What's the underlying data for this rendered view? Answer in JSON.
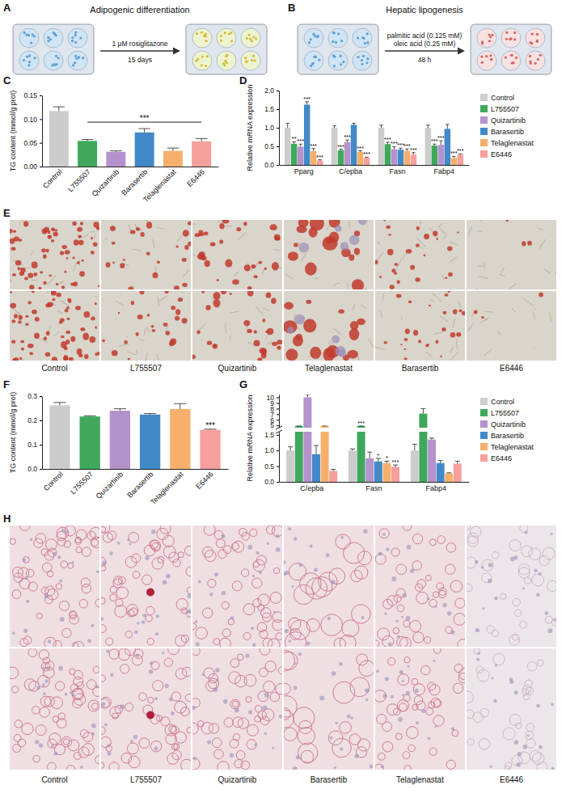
{
  "panel_labels": [
    "A",
    "B",
    "C",
    "D",
    "E",
    "F",
    "G",
    "H"
  ],
  "diagrams": [
    {
      "title": "Adipogenic differentiation",
      "above": [
        "1 μM rosiglitazone"
      ],
      "below": [
        "15 days"
      ]
    },
    {
      "title": "Hepatic lipogenesis",
      "above": [
        "palmitic acid (0.125 mM)",
        "oleic acid (0.25 mM)"
      ],
      "below": [
        "48 h"
      ]
    }
  ],
  "images": [
    {
      "captions": [
        "Control",
        "L755507",
        "Quizartinib",
        "Telaglenastat",
        "Barasertib",
        "E6446"
      ]
    },
    {
      "captions": [
        "Control",
        "L755507",
        "Quizartinib",
        "Barasertib",
        "Telaglenastat",
        "E6446"
      ]
    }
  ],
  "chart_data": [
    {
      "type": "bar",
      "ylabel": "TG content (mmol/g prot)",
      "categories": [
        "Control",
        "L755507",
        "Quizartinib",
        "Barasertib",
        "Telaglenastat",
        "E6446"
      ],
      "values": [
        0.117,
        0.054,
        0.031,
        0.072,
        0.033,
        0.053
      ],
      "errors": [
        0.009,
        0.003,
        0.002,
        0.008,
        0.006,
        0.006
      ],
      "colors": [
        "#cccccc",
        "#3fa85c",
        "#b592cc",
        "#4189c9",
        "#f6b06c",
        "#f5a09d"
      ],
      "ylim": [
        0,
        0.15
      ],
      "yticks": [
        {
          "value": 0,
          "label": "0.00"
        },
        {
          "value": 0.05,
          "label": "0.05"
        },
        {
          "value": 0.1,
          "label": "0.10"
        },
        {
          "value": 0.15,
          "label": "0.15"
        }
      ],
      "annotations": [
        {
          "text": "***",
          "from": "L755507",
          "to": "E6446"
        }
      ]
    },
    {
      "type": "bar",
      "ylabel": "Relative mRNA expression",
      "categories": [
        "Pparg",
        "C/epba",
        "Fasn",
        "Fabp4"
      ],
      "series": [
        {
          "name": "Control",
          "color": "#cccccc",
          "values": [
            1.0,
            1.0,
            1.0,
            1.0
          ],
          "errors": [
            0.12,
            0.05,
            0.07,
            0.07
          ],
          "annotations": [
            null,
            null,
            null,
            null
          ]
        },
        {
          "name": "L755507",
          "color": "#3fa85c",
          "values": [
            0.57,
            0.39,
            0.56,
            0.52
          ],
          "errors": [
            0.05,
            0.03,
            0.05,
            0.04
          ],
          "annotations": [
            "**",
            "***",
            "***",
            "***"
          ]
        },
        {
          "name": "Quizartinib",
          "color": "#b592cc",
          "values": [
            0.49,
            0.61,
            0.42,
            0.54
          ],
          "errors": [
            0.07,
            0.06,
            0.07,
            0.11
          ],
          "annotations": [
            "***",
            "***",
            "***",
            "***"
          ]
        },
        {
          "name": "Barasertib",
          "color": "#4189c9",
          "values": [
            1.62,
            1.08,
            0.41,
            0.97
          ],
          "errors": [
            0.08,
            0.04,
            0.04,
            0.12
          ],
          "annotations": [
            "***",
            null,
            "***",
            null
          ]
        },
        {
          "name": "Telaglenastat",
          "color": "#f6b06c",
          "values": [
            0.37,
            0.35,
            0.38,
            0.19
          ],
          "errors": [
            0.07,
            0.03,
            0.05,
            0.04
          ],
          "annotations": [
            "***",
            "***",
            "***",
            "***"
          ]
        },
        {
          "name": "E6446",
          "color": "#f5a09d",
          "values": [
            0.12,
            0.19,
            0.28,
            0.28
          ],
          "errors": [
            0.02,
            0.02,
            0.05,
            0.02
          ],
          "annotations": [
            "***",
            "***",
            "***",
            "***"
          ]
        }
      ],
      "ylim": [
        0,
        2
      ],
      "yticks": [
        {
          "value": 0,
          "label": "0.0"
        },
        {
          "value": 0.5,
          "label": "0.5"
        },
        {
          "value": 1,
          "label": "1.0"
        },
        {
          "value": 1.5,
          "label": "1.5"
        },
        {
          "value": 2,
          "label": "2.0"
        }
      ],
      "legend": "right"
    },
    {
      "type": "bar",
      "ylabel": "TG content (mmol/g prot)",
      "categories": [
        "Control",
        "L755507",
        "Quizartinib",
        "Barasertib",
        "Telaglenastat",
        "E6446"
      ],
      "values": [
        0.262,
        0.216,
        0.24,
        0.224,
        0.247,
        0.161
      ],
      "errors": [
        0.012,
        0.003,
        0.008,
        0.004,
        0.022,
        0.003
      ],
      "colors": [
        "#cccccc",
        "#3fa85c",
        "#b592cc",
        "#4189c9",
        "#f6b06c",
        "#f5a09d"
      ],
      "ylim": [
        0,
        0.3
      ],
      "yticks": [
        {
          "value": 0,
          "label": "0.0"
        },
        {
          "value": 0.1,
          "label": "0.1"
        },
        {
          "value": 0.2,
          "label": "0.2"
        },
        {
          "value": 0.3,
          "label": "0.3"
        }
      ],
      "annotations": [
        null,
        null,
        null,
        null,
        null,
        "***"
      ]
    },
    {
      "type": "bar",
      "ylabel": "Relative mRNA expression",
      "categories": [
        "C/epba",
        "Fasn",
        "Fabp4"
      ],
      "series": [
        {
          "name": "Control",
          "color": "#cccccc",
          "values": [
            1.0,
            1.0,
            1.0
          ],
          "errors": [
            0.12,
            0.05,
            0.2
          ],
          "annotations": [
            null,
            null,
            null
          ]
        },
        {
          "name": "L755507",
          "color": "#3fa85c",
          "values": [
            4.9,
            4.9,
            7.1
          ],
          "errors": [
            0,
            0,
            0.9
          ],
          "annotations": [
            null,
            "***",
            null
          ]
        },
        {
          "name": "Quizartinib",
          "color": "#b592cc",
          "values": [
            10.0,
            0.75,
            1.35
          ],
          "errors": [
            0.5,
            0.2,
            0.05
          ],
          "annotations": [
            null,
            null,
            null
          ]
        },
        {
          "name": "Barasertib",
          "color": "#4189c9",
          "values": [
            0.88,
            0.65,
            0.6
          ],
          "errors": [
            0.28,
            0.1,
            0.08
          ],
          "annotations": [
            null,
            "*",
            null
          ]
        },
        {
          "name": "Telaglenastat",
          "color": "#f6b06c",
          "values": [
            4.9,
            0.6,
            0.27
          ],
          "errors": [
            0,
            0.06,
            0.02
          ],
          "annotations": [
            null,
            "*",
            null
          ]
        },
        {
          "name": "E6446",
          "color": "#f5a09d",
          "values": [
            0.35,
            0.48,
            0.58
          ],
          "errors": [
            0.05,
            0.06,
            0.08
          ],
          "annotations": [
            null,
            "***",
            null
          ]
        }
      ],
      "ylim": [
        0,
        10.5
      ],
      "ybreak": [
        1.6,
        4.6
      ],
      "yticks": [
        {
          "value": 0,
          "label": "0.0"
        },
        {
          "value": 0.5,
          "label": "0.5"
        },
        {
          "value": 1,
          "label": "1.0"
        },
        {
          "value": 1.5,
          "label": "1.5"
        },
        5,
        6,
        7,
        8,
        9,
        10
      ],
      "legend": "right"
    }
  ]
}
